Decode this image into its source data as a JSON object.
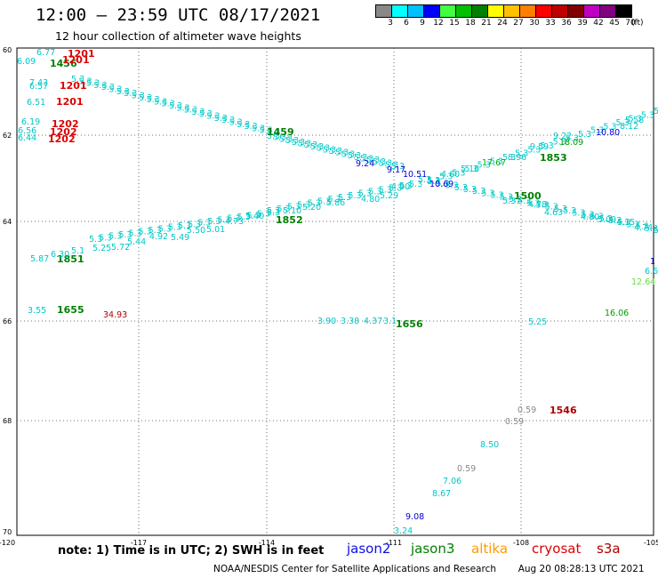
{
  "header": {
    "title": "12:00 – 23:59 UTC 08/17/2021",
    "subtitle": "12 hour collection of altimeter wave heights"
  },
  "scale": {
    "labels": [
      "3",
      "6",
      "9",
      "12",
      "15",
      "18",
      "21",
      "24",
      "27",
      "30",
      "33",
      "36",
      "39",
      "42",
      "45",
      "70"
    ],
    "unit": "(ft)",
    "colors": [
      "#888888",
      "#00ffff",
      "#00c0ff",
      "#0000ff",
      "#40ff40",
      "#00c000",
      "#008000",
      "#ffff00",
      "#ffc000",
      "#ff8000",
      "#ff0000",
      "#c00000",
      "#800000",
      "#c000c0",
      "#800080",
      "#000000"
    ]
  },
  "axes": {
    "lat_labels": [
      "60",
      "62",
      "64",
      "66",
      "68",
      "70"
    ],
    "lon_labels": [
      "-120",
      "-117",
      "-114",
      "-111",
      "-108",
      "-105"
    ]
  },
  "footer": {
    "note": "note: 1) Time is in UTC; 2) SWH is in feet",
    "legend": [
      {
        "name": "jason2",
        "color": "#1010e0"
      },
      {
        "name": "jason3",
        "color": "#008000"
      },
      {
        "name": "altika",
        "color": "#ff9900"
      },
      {
        "name": "cryosat",
        "color": "#e00000"
      },
      {
        "name": "s3a",
        "color": "#b00000"
      }
    ],
    "credit": "NOAA/NESDIS Center for Satellite Applications and Research",
    "timestamp": "Aug 20 08:28:13 UTC 2021"
  },
  "time_labels": [
    {
      "text": "1201",
      "color": "#dd0000"
    },
    {
      "text": "1456",
      "color": "#008000"
    },
    {
      "text": "1201",
      "color": "#dd0000"
    },
    {
      "text": "1201",
      "color": "#dd0000"
    },
    {
      "text": "1201",
      "color": "#dd0000"
    },
    {
      "text": "1202",
      "color": "#dd0000"
    },
    {
      "text": "1202",
      "color": "#dd0000"
    },
    {
      "text": "1202",
      "color": "#dd0000"
    },
    {
      "text": "1459",
      "color": "#008000"
    },
    {
      "text": "1853",
      "color": "#008000"
    },
    {
      "text": "1500",
      "color": "#008000"
    },
    {
      "text": "1852",
      "color": "#008000"
    },
    {
      "text": "1851",
      "color": "#008000"
    },
    {
      "text": "1655",
      "color": "#008000"
    },
    {
      "text": "1656",
      "color": "#008000"
    },
    {
      "text": "1546",
      "color": "#b00000"
    }
  ],
  "swh_labels": [
    {
      "text": "6.77",
      "color": "#00c8c8"
    },
    {
      "text": "6.09",
      "color": "#00c8c8"
    },
    {
      "text": "7.43",
      "color": "#00c8c8"
    },
    {
      "text": "6.57",
      "color": "#00c8c8"
    },
    {
      "text": "6.51",
      "color": "#00c8c8"
    },
    {
      "text": "6.19",
      "color": "#00c8c8"
    },
    {
      "text": "6.56",
      "color": "#00c8c8"
    },
    {
      "text": "6.44",
      "color": "#00c8c8"
    },
    {
      "text": "5.58",
      "color": "#00c8c8"
    },
    {
      "text": "8.12",
      "color": "#00c8c8"
    },
    {
      "text": "10.80",
      "color": "#0000dd"
    },
    {
      "text": "9.22",
      "color": "#00c8c8"
    },
    {
      "text": "18.09",
      "color": "#00a000"
    },
    {
      "text": "9.59",
      "color": "#00c8c8"
    },
    {
      "text": "8.96",
      "color": "#00c8c8"
    },
    {
      "text": "17.67",
      "color": "#00b000"
    },
    {
      "text": "5.16",
      "color": "#00c8c8"
    },
    {
      "text": "4.60",
      "color": "#00c8c8"
    },
    {
      "text": "9.24",
      "color": "#0000dd"
    },
    {
      "text": "9.17",
      "color": "#0000dd"
    },
    {
      "text": "10.51",
      "color": "#0000dd"
    },
    {
      "text": "10.69",
      "color": "#0000dd"
    },
    {
      "text": "5.37",
      "color": "#00c8c8"
    },
    {
      "text": "4.78",
      "color": "#00c8c8"
    },
    {
      "text": "4.63",
      "color": "#00c8c8"
    },
    {
      "text": "4.80",
      "color": "#00c8c8"
    },
    {
      "text": "5.09",
      "color": "#00c8c8"
    },
    {
      "text": "4.15",
      "color": "#00c8c8"
    },
    {
      "text": "4.74",
      "color": "#00c8c8"
    },
    {
      "text": "4.90",
      "color": "#00c8c8"
    },
    {
      "text": "5.29",
      "color": "#00c8c8"
    },
    {
      "text": "4.80",
      "color": "#00c8c8"
    },
    {
      "text": "5.86",
      "color": "#00c8c8"
    },
    {
      "text": "5.20",
      "color": "#00c8c8"
    },
    {
      "text": "5.10",
      "color": "#00c8c8"
    },
    {
      "text": "5.40",
      "color": "#00c8c8"
    },
    {
      "text": "4.73",
      "color": "#00c8c8"
    },
    {
      "text": "5.01",
      "color": "#00c8c8"
    },
    {
      "text": "5.50",
      "color": "#00c8c8"
    },
    {
      "text": "5.49",
      "color": "#00c8c8"
    },
    {
      "text": "4.92",
      "color": "#00c8c8"
    },
    {
      "text": "5.44",
      "color": "#00c8c8"
    },
    {
      "text": "5.72",
      "color": "#00c8c8"
    },
    {
      "text": "5.25",
      "color": "#00c8c8"
    },
    {
      "text": "5.1",
      "color": "#00c8c8"
    },
    {
      "text": "6.30",
      "color": "#00c8c8"
    },
    {
      "text": "5.87",
      "color": "#00c8c8"
    },
    {
      "text": "3.55",
      "color": "#00c8c8"
    },
    {
      "text": "34.93",
      "color": "#b00000"
    },
    {
      "text": "3.90",
      "color": "#00c8c8"
    },
    {
      "text": "3.38",
      "color": "#00c8c8"
    },
    {
      "text": "4.37",
      "color": "#00c8c8"
    },
    {
      "text": "3.1",
      "color": "#00c8c8"
    },
    {
      "text": "5.25",
      "color": "#00c8c8"
    },
    {
      "text": "16.06",
      "color": "#00a000"
    },
    {
      "text": "12.64",
      "color": "#60e040"
    },
    {
      "text": "6.6",
      "color": "#00c8c8"
    },
    {
      "text": "1",
      "color": "#0000dd"
    },
    {
      "text": "0.59",
      "color": "#888888"
    },
    {
      "text": "0.59",
      "color": "#888888"
    },
    {
      "text": "8.50",
      "color": "#00c8c8"
    },
    {
      "text": "0.59",
      "color": "#888888"
    },
    {
      "text": "7.06",
      "color": "#00c8c8"
    },
    {
      "text": "8.67",
      "color": "#00c8c8"
    },
    {
      "text": "9.08",
      "color": "#0000dd"
    },
    {
      "text": "3.24",
      "color": "#00c8c8"
    }
  ]
}
